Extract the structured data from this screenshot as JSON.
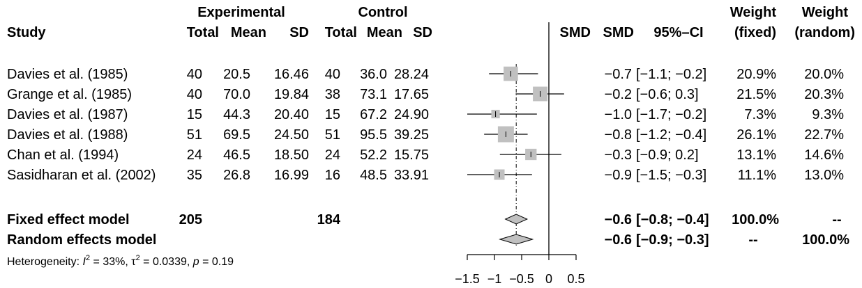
{
  "headers": {
    "group1": "Experimental",
    "group2": "Control",
    "study": "Study",
    "total1": "Total",
    "mean1": "Mean",
    "sd1": "SD",
    "total2": "Total",
    "mean2": "Mean",
    "sd2": "SD",
    "smd_plot": "SMD",
    "smd": "SMD",
    "ci": "95%–CI",
    "weight_fixed_1": "Weight",
    "weight_fixed_2": "(fixed)",
    "weight_random_1": "Weight",
    "weight_random_2": "(random)"
  },
  "studies": [
    {
      "name": "Davies et al. (1985)",
      "total_e": "40",
      "mean_e": "20.5",
      "sd_e": "16.46",
      "total_c": "40",
      "mean_c": "36.0",
      "sd_c": "28.24",
      "smd_text": "−0.7",
      "ci_text": "[−1.1; −0.2]",
      "w_fixed": "20.9%",
      "w_random": "20.0%",
      "smd": -0.7,
      "lower": -1.1,
      "upper": -0.2,
      "weight": 20.9
    },
    {
      "name": "Grange et al. (1985)",
      "total_e": "40",
      "mean_e": "70.0",
      "sd_e": "19.84",
      "total_c": "38",
      "mean_c": "73.1",
      "sd_c": "17.65",
      "smd_text": "−0.2",
      "ci_text": "[−0.6;  0.3]",
      "w_fixed": "21.5%",
      "w_random": "20.3%",
      "smd": -0.16,
      "lower": -0.61,
      "upper": 0.28,
      "weight": 21.5
    },
    {
      "name": "Davies et al. (1987)",
      "total_e": "15",
      "mean_e": "44.3",
      "sd_e": "20.40",
      "total_c": "15",
      "mean_c": "67.2",
      "sd_c": "24.90",
      "smd_text": "−1.0",
      "ci_text": "[−1.7; −0.2]",
      "w_fixed": "7.3%",
      "w_random": "9.3%",
      "smd": -0.98,
      "lower": -1.74,
      "upper": -0.22,
      "weight": 7.3
    },
    {
      "name": "Davies et al. (1988)",
      "total_e": "51",
      "mean_e": "69.5",
      "sd_e": "24.50",
      "total_c": "51",
      "mean_c": "95.5",
      "sd_c": "39.25",
      "smd_text": "−0.8",
      "ci_text": "[−1.2; −0.4]",
      "w_fixed": "26.1%",
      "w_random": "22.7%",
      "smd": -0.79,
      "lower": -1.19,
      "upper": -0.39,
      "weight": 26.1
    },
    {
      "name": "Chan et al. (1994)",
      "total_e": "24",
      "mean_e": "46.5",
      "sd_e": "18.50",
      "total_c": "24",
      "mean_c": "52.2",
      "sd_c": "15.75",
      "smd_text": "−0.3",
      "ci_text": "[−0.9;  0.2]",
      "w_fixed": "13.1%",
      "w_random": "14.6%",
      "smd": -0.33,
      "lower": -0.9,
      "upper": 0.23,
      "weight": 13.1
    },
    {
      "name": "Sasidharan et al. (2002)",
      "total_e": "35",
      "mean_e": "26.8",
      "sd_e": "16.99",
      "total_c": "16",
      "mean_c": "48.5",
      "sd_c": "33.91",
      "smd_text": "−0.9",
      "ci_text": "[−1.5; −0.3]",
      "w_fixed": "11.1%",
      "w_random": "13.0%",
      "smd": -0.91,
      "lower": -1.52,
      "upper": -0.31,
      "weight": 11.1
    }
  ],
  "fixed_model": {
    "label": "Fixed effect model",
    "total_e": "205",
    "total_c": "184",
    "smd_text": "−0.6",
    "ci_text": "[−0.8; −0.4]",
    "w_fixed": "100.0%",
    "w_random": "--",
    "smd": -0.6,
    "lower": -0.8,
    "upper": -0.4
  },
  "random_model": {
    "label": "Random effects model",
    "smd_text": "−0.6",
    "ci_text": "[−0.9; −0.3]",
    "w_fixed": "--",
    "w_random": "100.0%",
    "smd": -0.6,
    "lower": -0.9,
    "upper": -0.3
  },
  "heterogeneity": {
    "prefix": "Heterogeneity: ",
    "i_symbol": "I",
    "i_exp": "2",
    "i_value": " = 33%, ",
    "tau_symbol": "τ",
    "tau_exp": "2",
    "tau_value": " = 0.0339, ",
    "p_symbol": "p",
    "p_value": " = 0.19"
  },
  "chart_data": {
    "type": "forest",
    "xlim": [
      -1.5,
      0.5
    ],
    "ticks": [
      -1.5,
      -1,
      -0.5,
      0,
      0.5
    ],
    "tick_labels": [
      "−1.5",
      "−1",
      "−0.5",
      "0",
      "0.5"
    ],
    "reference_line": 0,
    "pooled_reference": -0.6,
    "colors": {
      "square": "#c0c0c0",
      "line": "#000000",
      "diamond": "#c0c0c0"
    }
  }
}
